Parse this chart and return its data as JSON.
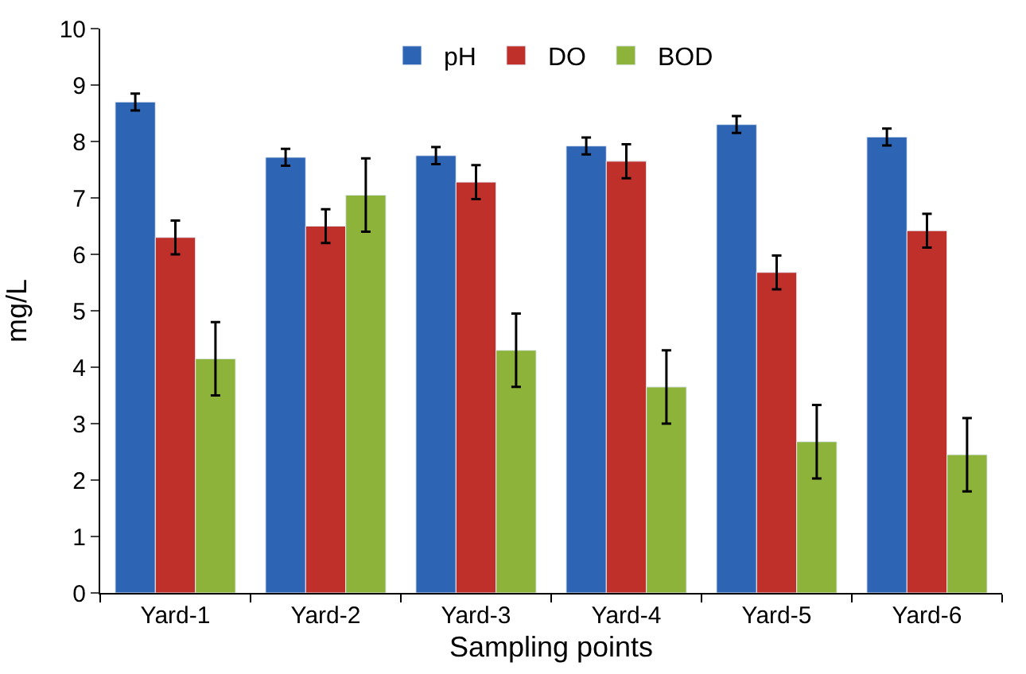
{
  "chart_data": {
    "type": "bar",
    "xlabel": "Sampling points",
    "ylabel": "mg/L",
    "categories": [
      "Yard-1",
      "Yard-2",
      "Yard-3",
      "Yard-4",
      "Yard-5",
      "Yard-6"
    ],
    "series": [
      {
        "name": "pH",
        "color": "#2e64b4",
        "values": [
          8.7,
          7.72,
          7.75,
          7.92,
          8.3,
          8.08
        ],
        "errors": [
          0.15,
          0.15,
          0.15,
          0.15,
          0.15,
          0.15
        ]
      },
      {
        "name": "DO",
        "color": "#bf302a",
        "values": [
          6.3,
          6.5,
          7.28,
          7.65,
          5.68,
          6.42
        ],
        "errors": [
          0.3,
          0.3,
          0.3,
          0.3,
          0.3,
          0.3
        ]
      },
      {
        "name": "BOD",
        "color": "#8db33a",
        "values": [
          4.15,
          7.05,
          4.3,
          3.65,
          2.68,
          2.45
        ],
        "errors": [
          0.65,
          0.65,
          0.65,
          0.65,
          0.65,
          0.65
        ]
      }
    ],
    "ylim": [
      0,
      10
    ],
    "yticks": [
      0,
      1,
      2,
      3,
      4,
      5,
      6,
      7,
      8,
      9,
      10
    ],
    "legend": "top"
  }
}
